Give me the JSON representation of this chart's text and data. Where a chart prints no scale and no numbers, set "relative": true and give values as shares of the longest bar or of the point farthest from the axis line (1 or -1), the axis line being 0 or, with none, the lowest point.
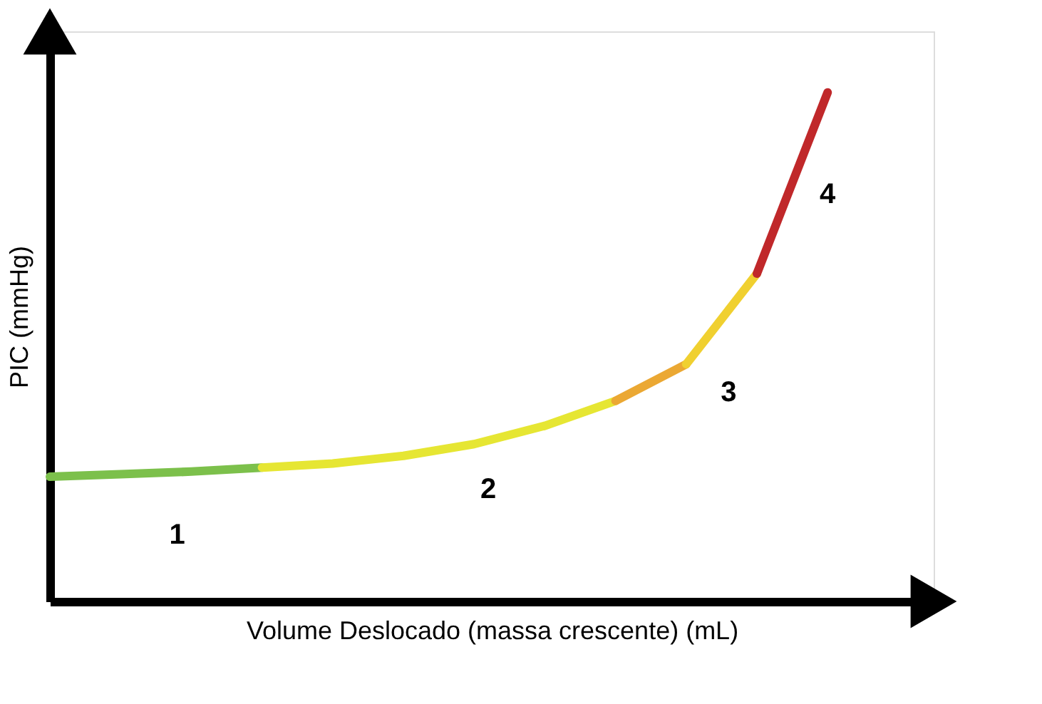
{
  "chart_data": {
    "type": "line",
    "relative": true,
    "xlabel": "Volume Deslocado (massa crescente) (mL)",
    "ylabel": "PIC (mmHg)",
    "grid": false,
    "line_style": "solid",
    "marker": "none",
    "categories": [
      null,
      null,
      null,
      null,
      null,
      null,
      null,
      null,
      null,
      null,
      null,
      null
    ],
    "series": [
      {
        "color": "#7cc04b",
        "values": [
          0.245,
          0.25,
          0.255,
          0.263,
          null,
          null,
          null,
          null,
          null,
          null,
          null,
          null
        ]
      },
      {
        "color": "#e6e633",
        "values": [
          null,
          null,
          null,
          0.263,
          0.271,
          0.286,
          0.309,
          0.345,
          0.394,
          null,
          null,
          null
        ]
      },
      {
        "color": "#eba833",
        "values": [
          null,
          null,
          null,
          null,
          null,
          null,
          null,
          null,
          0.394,
          0.466,
          null,
          null
        ]
      },
      {
        "color": "#f0d030",
        "values": [
          null,
          null,
          null,
          null,
          null,
          null,
          null,
          null,
          null,
          0.466,
          0.644,
          null
        ]
      },
      {
        "color": "#c0282a",
        "values": [
          null,
          null,
          null,
          null,
          null,
          null,
          null,
          null,
          null,
          null,
          0.644,
          1
        ]
      }
    ],
    "annotations": [
      "1",
      "2",
      "3",
      "4"
    ]
  }
}
